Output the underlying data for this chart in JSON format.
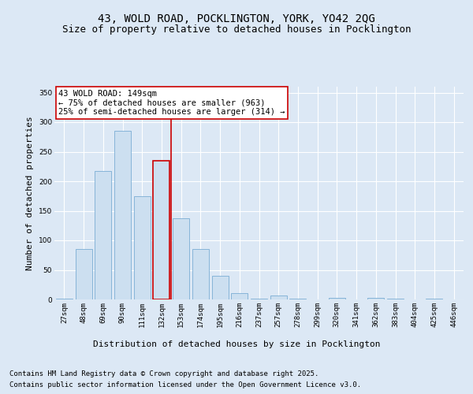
{
  "title_line1": "43, WOLD ROAD, POCKLINGTON, YORK, YO42 2QG",
  "title_line2": "Size of property relative to detached houses in Pocklington",
  "xlabel": "Distribution of detached houses by size in Pocklington",
  "ylabel": "Number of detached properties",
  "categories": [
    "27sqm",
    "48sqm",
    "69sqm",
    "90sqm",
    "111sqm",
    "132sqm",
    "153sqm",
    "174sqm",
    "195sqm",
    "216sqm",
    "237sqm",
    "257sqm",
    "278sqm",
    "299sqm",
    "320sqm",
    "341sqm",
    "362sqm",
    "383sqm",
    "404sqm",
    "425sqm",
    "446sqm"
  ],
  "values": [
    2,
    85,
    218,
    285,
    175,
    235,
    138,
    85,
    40,
    11,
    2,
    7,
    2,
    0,
    3,
    0,
    3,
    2,
    0,
    2,
    0
  ],
  "bar_color": "#ccdff0",
  "bar_edge_color": "#7aadd4",
  "vline_color": "#cc0000",
  "vline_x": 5.5,
  "highlight_bar_index": 5,
  "highlight_edge_color": "#cc0000",
  "annotation_title": "43 WOLD ROAD: 149sqm",
  "annotation_line1": "← 75% of detached houses are smaller (963)",
  "annotation_line2": "25% of semi-detached houses are larger (314) →",
  "annotation_box_color": "#ffffff",
  "annotation_box_edge": "#cc0000",
  "ylim": [
    0,
    360
  ],
  "yticks": [
    0,
    50,
    100,
    150,
    200,
    250,
    300,
    350
  ],
  "background_color": "#dce8f5",
  "plot_bg_color": "#dce8f5",
  "footer_line1": "Contains HM Land Registry data © Crown copyright and database right 2025.",
  "footer_line2": "Contains public sector information licensed under the Open Government Licence v3.0.",
  "title_fontsize": 10,
  "subtitle_fontsize": 9,
  "axis_label_fontsize": 8,
  "tick_fontsize": 6.5,
  "annotation_fontsize": 7.5,
  "footer_fontsize": 6.5,
  "ylabel_fontsize": 8
}
